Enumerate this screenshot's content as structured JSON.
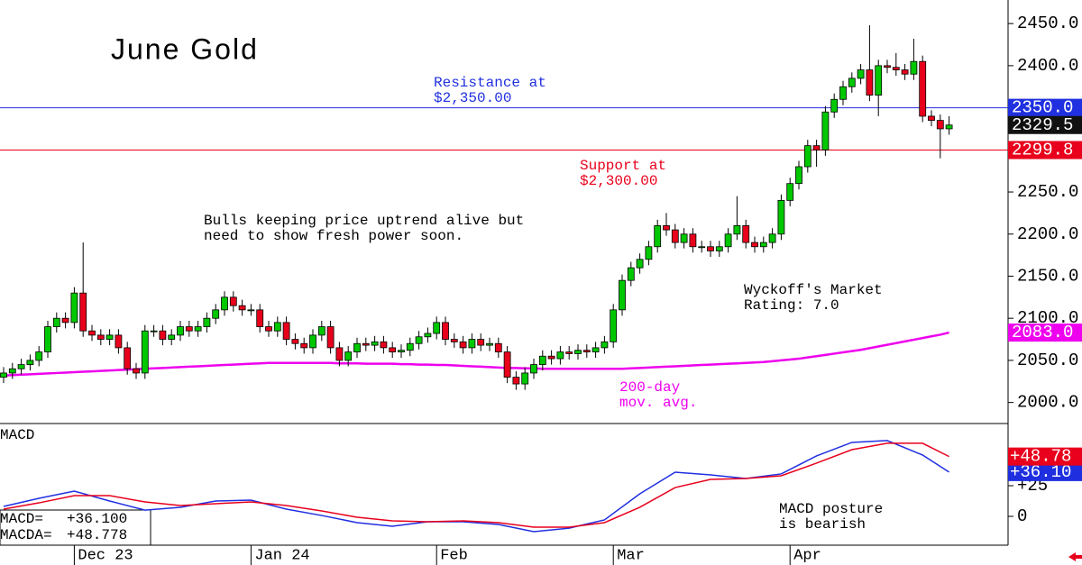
{
  "chart_data": [
    {
      "type": "candlestick",
      "title": "June Gold",
      "categories": [
        null,
        null,
        null,
        null,
        null,
        null,
        null,
        null,
        "Dec 23",
        null,
        null,
        null,
        null,
        null,
        null,
        null,
        null,
        null,
        null,
        null,
        null,
        null,
        null,
        null,
        null,
        null,
        null,
        null,
        "Jan 24",
        null,
        null,
        null,
        null,
        null,
        null,
        null,
        null,
        null,
        null,
        null,
        null,
        null,
        null,
        null,
        null,
        null,
        null,
        null,
        null,
        "Feb",
        null,
        null,
        null,
        null,
        null,
        null,
        null,
        null,
        null,
        null,
        null,
        null,
        null,
        null,
        null,
        null,
        null,
        null,
        null,
        "Mar",
        null,
        null,
        null,
        null,
        null,
        null,
        null,
        null,
        null,
        null,
        null,
        null,
        null,
        null,
        null,
        null,
        null,
        null,
        null,
        "Apr",
        null,
        null,
        null,
        null,
        null,
        null,
        null,
        null,
        null,
        null,
        null,
        null,
        null,
        null,
        null,
        null,
        null,
        null
      ],
      "open": [
        2030,
        2035,
        2040,
        2045,
        2050,
        2060,
        2090,
        2100,
        2095,
        2130,
        2085,
        2080,
        2075,
        2080,
        2065,
        2040,
        2035,
        2085,
        2085,
        2075,
        2080,
        2090,
        2085,
        2090,
        2100,
        2110,
        2125,
        2115,
        2110,
        2110,
        2090,
        2085,
        2095,
        2075,
        2070,
        2065,
        2080,
        2090,
        2065,
        2050,
        2060,
        2070,
        2068,
        2072,
        2065,
        2060,
        2062,
        2070,
        2078,
        2082,
        2095,
        2075,
        2072,
        2065,
        2075,
        2068,
        2070,
        2060,
        2030,
        2022,
        2035,
        2045,
        2055,
        2052,
        2060,
        2058,
        2062,
        2060,
        2065,
        2072,
        2110,
        2145,
        2160,
        2170,
        2185,
        2210,
        2205,
        2190,
        2200,
        2185,
        2185,
        2180,
        2185,
        2200,
        2210,
        2190,
        2185,
        2190,
        2200,
        2240,
        2260,
        2280,
        2305,
        2300,
        2345,
        2360,
        2375,
        2385,
        2395,
        2365,
        2400,
        2398,
        2395,
        2390,
        2405,
        2340,
        2335,
        2325
      ],
      "high": [
        2042,
        2047,
        2052,
        2057,
        2067,
        2097,
        2107,
        2107,
        2137,
        2190,
        2092,
        2087,
        2087,
        2087,
        2072,
        2047,
        2092,
        2092,
        2092,
        2087,
        2097,
        2097,
        2097,
        2107,
        2117,
        2132,
        2132,
        2122,
        2117,
        2117,
        2097,
        2102,
        2102,
        2082,
        2077,
        2087,
        2097,
        2097,
        2072,
        2067,
        2077,
        2077,
        2079,
        2079,
        2072,
        2069,
        2077,
        2085,
        2089,
        2102,
        2102,
        2082,
        2079,
        2082,
        2082,
        2077,
        2077,
        2067,
        2037,
        2042,
        2052,
        2062,
        2062,
        2067,
        2067,
        2069,
        2069,
        2072,
        2079,
        2117,
        2152,
        2167,
        2177,
        2192,
        2217,
        2225,
        2212,
        2207,
        2207,
        2192,
        2192,
        2192,
        2207,
        2245,
        2217,
        2197,
        2197,
        2207,
        2247,
        2267,
        2287,
        2312,
        2312,
        2352,
        2367,
        2382,
        2392,
        2402,
        2448,
        2407,
        2407,
        2415,
        2402,
        2432,
        2412,
        2347,
        2342,
        2340
      ],
      "low": [
        2023,
        2028,
        2033,
        2038,
        2043,
        2053,
        2083,
        2088,
        2088,
        2078,
        2073,
        2068,
        2068,
        2058,
        2033,
        2028,
        2028,
        2078,
        2068,
        2068,
        2073,
        2078,
        2078,
        2083,
        2093,
        2103,
        2108,
        2103,
        2103,
        2083,
        2078,
        2078,
        2068,
        2063,
        2058,
        2058,
        2073,
        2058,
        2043,
        2043,
        2053,
        2061,
        2061,
        2058,
        2053,
        2053,
        2055,
        2063,
        2071,
        2075,
        2068,
        2065,
        2058,
        2058,
        2061,
        2061,
        2053,
        2023,
        2015,
        2015,
        2028,
        2038,
        2045,
        2045,
        2051,
        2051,
        2053,
        2053,
        2058,
        2065,
        2103,
        2138,
        2153,
        2163,
        2178,
        2198,
        2183,
        2183,
        2178,
        2178,
        2173,
        2173,
        2178,
        2193,
        2183,
        2178,
        2178,
        2183,
        2193,
        2233,
        2253,
        2273,
        2280,
        2293,
        2338,
        2353,
        2368,
        2378,
        2358,
        2340,
        2391,
        2388,
        2383,
        2383,
        2333,
        2328,
        2290,
        2318
      ],
      "close": [
        2035,
        2040,
        2045,
        2050,
        2060,
        2090,
        2100,
        2095,
        2130,
        2085,
        2080,
        2075,
        2080,
        2065,
        2040,
        2035,
        2085,
        2085,
        2075,
        2080,
        2090,
        2085,
        2090,
        2100,
        2110,
        2125,
        2115,
        2110,
        2110,
        2090,
        2085,
        2095,
        2075,
        2070,
        2065,
        2080,
        2090,
        2065,
        2050,
        2060,
        2070,
        2068,
        2072,
        2065,
        2060,
        2062,
        2070,
        2078,
        2082,
        2095,
        2075,
        2072,
        2065,
        2075,
        2068,
        2070,
        2060,
        2030,
        2022,
        2035,
        2045,
        2055,
        2052,
        2060,
        2058,
        2062,
        2060,
        2065,
        2072,
        2110,
        2145,
        2160,
        2170,
        2185,
        2210,
        2205,
        2190,
        2200,
        2185,
        2185,
        2180,
        2185,
        2200,
        2210,
        2190,
        2185,
        2190,
        2200,
        2240,
        2260,
        2280,
        2305,
        2300,
        2345,
        2360,
        2375,
        2385,
        2395,
        2365,
        2400,
        2398,
        2395,
        2390,
        2405,
        2340,
        2335,
        2325,
        2329.5
      ],
      "up_color": "#00c800",
      "down_color": "#e8001c",
      "moving_average": {
        "color": "#ee00ee",
        "lines": [
          "200-day",
          "mov. avg."
        ],
        "values": [
          2032,
          2032.5,
          2033,
          2033.5,
          2034,
          2034.5,
          2035,
          2035.5,
          2036,
          2036.5,
          2037,
          2037.5,
          2038,
          2038.5,
          2039,
          2039.5,
          2040,
          2040.5,
          2041,
          2041.5,
          2042,
          2042.5,
          2043,
          2043.5,
          2044,
          2044.5,
          2045,
          2045.5,
          2046,
          2046.5,
          2047,
          2047,
          2047,
          2047,
          2047,
          2047,
          2047,
          2047,
          2046.5,
          2046.5,
          2046.5,
          2046,
          2046,
          2046,
          2046,
          2045.5,
          2045.5,
          2045,
          2045,
          2044.5,
          2044.5,
          2044,
          2043.5,
          2043,
          2042.5,
          2042,
          2041.5,
          2041,
          2041,
          2040.5,
          2040.5,
          2040,
          2040,
          2040,
          2040,
          2040,
          2040,
          2040,
          2040,
          2040,
          2040,
          2040.5,
          2041,
          2041.5,
          2042,
          2042.5,
          2043,
          2043.5,
          2044,
          2044.5,
          2045,
          2045.5,
          2046,
          2046.5,
          2047,
          2047.5,
          2048,
          2049,
          2050,
          2051,
          2052,
          2053.5,
          2055,
          2056.5,
          2058,
          2059.5,
          2061,
          2062.5,
          2064.5,
          2066.5,
          2068.5,
          2070.5,
          2072.5,
          2074.5,
          2076.5,
          2078.5,
          2080.5,
          2083
        ]
      },
      "ylim": [
        1975,
        2478
      ],
      "yticks": [
        {
          "value": 2000,
          "label": "2000.0"
        },
        {
          "value": 2050,
          "label": "2050.0"
        },
        {
          "value": 2100,
          "label": "2100.0"
        },
        {
          "value": 2150,
          "label": "2150.0"
        },
        {
          "value": 2200,
          "label": "2200.0"
        },
        {
          "value": 2250,
          "label": "2250.0"
        },
        {
          "value": 2300,
          "label": "2300.0"
        },
        {
          "value": 2350,
          "label": "2350.0"
        },
        {
          "value": 2400,
          "label": "2400.0"
        },
        {
          "value": 2450,
          "label": "2450.0"
        }
      ],
      "price_tags": [
        {
          "value": 2350,
          "label": "2350.0",
          "color": "#2030e0",
          "line": true
        },
        {
          "value": 2329.5,
          "label": "2329.5",
          "color": "#111111",
          "line": false
        },
        {
          "value": 2299.8,
          "label": "2299.8",
          "color": "#e8001c",
          "line": true
        },
        {
          "value": 2083,
          "label": "2083.0",
          "color": "#ee00ee",
          "line": false
        }
      ],
      "annotations": [
        {
          "lines": [
            "Resistance at",
            "$2,350.00"
          ],
          "color": "#2030e0"
        },
        {
          "lines": [
            "Support at",
            "$2,300.00"
          ],
          "color": "#e8001c"
        },
        {
          "lines": [
            "Bulls keeping price uptrend alive but",
            "need to show fresh power soon."
          ],
          "color": "#000000"
        },
        {
          "lines": [
            "Wyckoff's Market",
            "Rating: 7.0"
          ],
          "color": "#000000"
        }
      ]
    },
    {
      "type": "line",
      "title": "MACD",
      "x": [
        0,
        4,
        8,
        12,
        16,
        20,
        24,
        28,
        32,
        36,
        40,
        44,
        48,
        52,
        56,
        60,
        64,
        68,
        72,
        76,
        80,
        84,
        88,
        92,
        96,
        100,
        104,
        107
      ],
      "series": [
        {
          "name": "MACD=",
          "color": "#1f2fe0",
          "value_labels": [
            "+36.100",
            "+36.10"
          ],
          "values": [
            8.1,
            14.7,
            20.6,
            12.5,
            5.1,
            7.4,
            12.5,
            13.2,
            5.9,
            0.7,
            -5.1,
            -8.1,
            -4.4,
            -4.4,
            -6.6,
            -12.5,
            -9.6,
            -2.9,
            18.4,
            36.0,
            33.8,
            30.9,
            34.6,
            49.3,
            60.3,
            61.8,
            50.0,
            36.1
          ]
        },
        {
          "name": "MACDA=",
          "color": "#e8001c",
          "value_labels": [
            "+48.778",
            "+48.78"
          ],
          "values": [
            5.9,
            11.0,
            16.9,
            16.9,
            11.8,
            8.8,
            10.3,
            11.8,
            8.8,
            4.4,
            -0.7,
            -3.7,
            -4.4,
            -3.7,
            -5.1,
            -8.8,
            -8.8,
            -5.1,
            7.4,
            23.5,
            30.1,
            30.9,
            33.1,
            43.4,
            54.4,
            59.6,
            59.6,
            48.778
          ]
        }
      ],
      "ylim": [
        -23.5,
        75.7
      ],
      "yticks": [
        0,
        {
          "value": 25,
          "label": "+25"
        }
      ],
      "annotations": [
        {
          "lines": [
            "MACD posture",
            "is bearish"
          ],
          "color": "#000000"
        }
      ]
    }
  ]
}
